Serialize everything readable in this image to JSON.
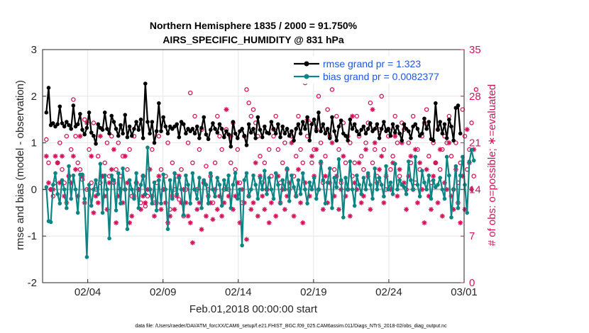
{
  "chart_data": {
    "type": "line",
    "title": "Northern Hemisphere 1835 / 2000 = 91.750%",
    "subtitle": "AIRS_SPECIFIC_HUMIDITY @ 831 hPa",
    "xlabel": "Feb.01,2018 00:00:00 start",
    "ylabel": "rmse and bias (model - observation)",
    "y2label": "# of obs: o=possible; ∗=evaluated",
    "xlim": [
      0,
      28
    ],
    "ylim": [
      -2,
      3
    ],
    "y2lim": [
      0,
      35
    ],
    "x_ticks": [
      {
        "x": 3,
        "label": "02/04"
      },
      {
        "x": 8,
        "label": "02/09"
      },
      {
        "x": 13,
        "label": "02/14"
      },
      {
        "x": 18,
        "label": "02/19"
      },
      {
        "x": 23,
        "label": "02/24"
      },
      {
        "x": 28,
        "label": "03/01"
      }
    ],
    "y_ticks": [
      -2,
      -1,
      0,
      1,
      2,
      3
    ],
    "y2_ticks": [
      0,
      7,
      14,
      21,
      28,
      35
    ],
    "grid": true,
    "legend_position": "top-right",
    "series": [
      {
        "name": "rmse grand pr = 1.323",
        "color": "#000000",
        "values": [
          1.65,
          2.18,
          1.38,
          1.42,
          1.35,
          1.4,
          1.78,
          1.42,
          1.35,
          1.45,
          1.38,
          1.3,
          1.8,
          1.35,
          1.4,
          1.62,
          1.28,
          1.18,
          1.32,
          1.65,
          1.22,
          1.15,
          0.98,
          1.4,
          1.32,
          1.28,
          1.65,
          1.3,
          1.2,
          1.58,
          1.45,
          1.3,
          1.15,
          1.38,
          1.2,
          1.6,
          1.12,
          1.35,
          1.15,
          1.3,
          1.45,
          1.28,
          1.5,
          1.1,
          2.27,
          1.45,
          1.2,
          1.45,
          1.0,
          1.25,
          1.85,
          1.25,
          1.55,
          1.35,
          1.2,
          1.35,
          1.3,
          1.35,
          1.4,
          1.12,
          1.45,
          1.4,
          1.2,
          1.3,
          1.25,
          1.3,
          1.2,
          1.35,
          1.1,
          1.32,
          1.55,
          1.18,
          1.08,
          1.28,
          1.42,
          1.3,
          1.22,
          1.4,
          1.3,
          1.12,
          1.25,
          1.18,
          0.92,
          1.45,
          1.2,
          1.1,
          1.25,
          1.3,
          1.15,
          0.95,
          1.4,
          1.22,
          1.3,
          1.1,
          1.55,
          1.28,
          1.12,
          1.35,
          1.22,
          1.2,
          1.45,
          1.3,
          1.2,
          1.4,
          1.12,
          1.35,
          1.2,
          1.3,
          1.15,
          1.25,
          1.05,
          1.3,
          1.4,
          1.2,
          1.45,
          1.3,
          1.55,
          1.05,
          1.4,
          1.5,
          1.25,
          1.65,
          1.25,
          1.4,
          1.2,
          1.3,
          1.1,
          1.55,
          1.25,
          1.05,
          1.35,
          1.48,
          1.2,
          1.15,
          1.05,
          1.5,
          1.3,
          1.4,
          1.25,
          1.18,
          1.28,
          1.35,
          1.2,
          1.3,
          1.42,
          1.25,
          1.3,
          1.4,
          1.1,
          1.3,
          1.45,
          1.25,
          1.3,
          1.15,
          1.4,
          1.22,
          1.35,
          1.2,
          1.05,
          1.4,
          1.3,
          1.25,
          1.1,
          1.35,
          1.4,
          1.3,
          1.15,
          1.2,
          1.52,
          1.3,
          1.45,
          1.08,
          1.05,
          1.85,
          1.28,
          1.45,
          1.2,
          1.4,
          1.1,
          1.5,
          1.35,
          1.05,
          1.75,
          1.8,
          1.2
        ]
      },
      {
        "name": "bias grand pr = 0.0082377",
        "color": "#0e8585",
        "values": [
          0.05,
          -0.68,
          -0.7,
          0.1,
          0.35,
          -0.1,
          -0.3,
          0.2,
          0.0,
          -0.4,
          0.5,
          -0.2,
          0.3,
          0.0,
          -0.5,
          0.32,
          0.32,
          -0.2,
          -1.45,
          0.1,
          -0.35,
          0.0,
          0.2,
          -0.1,
          0.55,
          -0.5,
          0.3,
          0.0,
          -1.05,
          0.3,
          0.2,
          -0.45,
          0.35,
          -0.3,
          0.45,
          0.0,
          -0.85,
          0.2,
          0.0,
          -0.2,
          0.35,
          -0.4,
          0.1,
          0.3,
          -0.1,
          0.9,
          0.0,
          -0.3,
          0.15,
          -0.45,
          0.2,
          -0.3,
          0.32,
          0.0,
          -0.85,
          0.2,
          -0.2,
          0.35,
          -0.1,
          0.25,
          0.0,
          -0.55,
          0.3,
          0.1,
          -0.3,
          0.35,
          0.0,
          -0.2,
          0.25,
          -0.4,
          0.2,
          0.1,
          -0.3,
          0.35,
          0.0,
          -0.15,
          0.25,
          0.1,
          -0.35,
          0.2,
          0.0,
          0.3,
          -0.4,
          0.1,
          0.35,
          -0.2,
          0.0,
          -1.2,
          0.2,
          0.35,
          -0.15,
          0.0,
          0.3,
          0.1,
          -0.2,
          0.25,
          0.0,
          0.4,
          -0.1,
          0.25,
          0.0,
          -0.2,
          0.35,
          0.1,
          -0.3,
          0.2,
          0.0,
          0.45,
          -0.25,
          0.3,
          0.05,
          -0.15,
          0.2,
          -0.1,
          0.35,
          0.0,
          -0.3,
          0.15,
          0.0,
          0.25,
          -0.2,
          0.0,
          0.6,
          0.2,
          -0.3,
          0.15,
          0.45,
          -0.4,
          0.25,
          0.05,
          0.65,
          0.2,
          -0.6,
          0.25,
          0.0,
          0.6,
          0.0,
          -0.35,
          0.3,
          0.1,
          -0.1,
          0.25,
          0.0,
          0.35,
          0.1,
          -0.2,
          0.45,
          0.0,
          0.25,
          0.1,
          -0.15,
          0.5,
          0.0,
          0.15,
          -0.1,
          0.55,
          0.0,
          0.2,
          0.1,
          0.05,
          -0.1,
          0.6,
          0.2,
          0.0,
          0.7,
          0.1,
          -0.15,
          0.4,
          0.15,
          0.0,
          0.3,
          -0.2,
          0.2,
          0.05,
          0.1,
          0.25,
          0.0,
          -0.2,
          0.7,
          0.3,
          -0.6,
          0.0,
          0.5,
          -0.4,
          0.3,
          0.7,
          0.1,
          -0.5,
          0.6,
          0.85,
          0.62
        ]
      }
    ],
    "obs_possible": [
      21.5,
      18,
      14,
      13,
      15,
      18,
      21,
      17,
      15,
      22,
      16,
      20,
      27.5,
      22,
      18,
      17,
      15.5,
      24.5,
      14,
      20,
      15,
      24,
      14,
      19,
      15,
      16,
      18,
      21,
      16,
      22,
      15,
      17,
      21,
      16,
      19,
      14,
      17,
      20,
      13,
      22,
      15,
      14,
      12,
      16,
      11.5,
      13,
      14,
      20,
      12,
      15,
      22,
      17,
      14,
      16,
      21,
      11,
      18,
      14,
      16,
      12.5,
      17,
      10,
      14,
      21,
      28.5,
      18,
      25,
      14,
      20,
      23,
      15,
      17.5,
      14,
      16,
      12,
      18,
      25,
      22,
      20,
      14,
      23,
      14,
      18,
      24,
      17,
      20,
      15,
      12,
      22,
      29,
      27,
      25,
      26,
      24,
      22,
      19,
      15,
      18,
      14,
      20,
      16,
      22,
      25,
      20,
      15,
      18,
      21,
      17,
      14,
      22,
      16,
      19,
      25,
      20,
      18,
      30,
      22,
      24,
      18,
      20,
      23,
      28,
      21,
      15,
      19,
      26,
      22,
      29,
      17,
      25,
      20,
      15,
      24,
      18,
      14,
      21,
      16,
      18,
      25,
      22,
      19,
      17,
      21,
      24,
      27,
      18,
      20,
      16,
      23,
      28,
      20,
      14,
      22,
      17,
      19,
      25,
      21,
      16,
      24,
      23,
      14,
      21,
      18,
      25,
      15,
      20,
      17,
      22,
      24,
      26,
      19,
      15,
      21,
      18,
      23,
      17,
      20,
      22,
      21,
      25,
      19,
      14,
      21,
      15,
      18,
      26,
      22,
      17,
      20,
      24,
      16,
      29
    ],
    "obs_evaluated": [
      19,
      15,
      14,
      14,
      19,
      18,
      15,
      19,
      13,
      12,
      16,
      15,
      19,
      17,
      13,
      22,
      16,
      12,
      24,
      14,
      19,
      10.5,
      13,
      12,
      22,
      16,
      13,
      11,
      15,
      17,
      20,
      9,
      13,
      14,
      12,
      19,
      15,
      9,
      10,
      13,
      15,
      14,
      11,
      13,
      12,
      14,
      17,
      13,
      10,
      12,
      16,
      11,
      14,
      12,
      9,
      10,
      13,
      11,
      13,
      16,
      12,
      14,
      12,
      10,
      9,
      6,
      14,
      11,
      12,
      8,
      15,
      10,
      13,
      12,
      9.5,
      14,
      11,
      13,
      10,
      12,
      26,
      13,
      22,
      11,
      13,
      15,
      9,
      14,
      12,
      6.5,
      13,
      11,
      12,
      18,
      10,
      16,
      13,
      11,
      14,
      9,
      12,
      23,
      10,
      16,
      12,
      14,
      11,
      13,
      15,
      21,
      10,
      13,
      17,
      12,
      9,
      15,
      24.5,
      13,
      19,
      16,
      20,
      14,
      18,
      11,
      16,
      12,
      15,
      21,
      13,
      16,
      11,
      14,
      19,
      13,
      22,
      10,
      25,
      15,
      14,
      18,
      12,
      13,
      20,
      16,
      11,
      26,
      21,
      15,
      17,
      19,
      12,
      16,
      23,
      14,
      18,
      22,
      13,
      17,
      21,
      15,
      11,
      16,
      19,
      14,
      20,
      12,
      18,
      14,
      9,
      17,
      13,
      11,
      16,
      18,
      12,
      20,
      10,
      15,
      14,
      21,
      13,
      11,
      17,
      12,
      9,
      16,
      11,
      23,
      18,
      14,
      20
    ]
  },
  "legend": [
    {
      "label": "rmse grand pr = 1.323",
      "color": "#000000"
    },
    {
      "label": "bias grand pr = 0.0082377",
      "color": "#0e8585"
    }
  ],
  "footer": "data file: /Users/raeder/DAI/ATM_forcXX/CAM6_setup/f.e21.FHIST_BGC.f09_025.CAM6assim.011/Diags_NTrS_2018-02/obs_diag_output.nc",
  "colors": {
    "rmse": "#000000",
    "bias": "#0e8585",
    "obs": "#d4145a",
    "zero_line": "#b3b3b3",
    "grid": "#e6e6e6"
  }
}
